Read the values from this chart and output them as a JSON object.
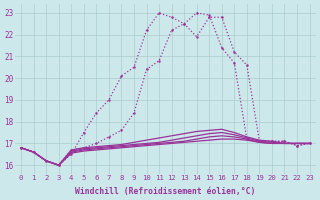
{
  "background_color": "#cce8ea",
  "grid_color": "#aacccc",
  "line_color": "#993399",
  "xlabel": "Windchill (Refroidissement éolien,°C)",
  "ylim": [
    15.6,
    23.4
  ],
  "xlim": [
    -0.5,
    23.5
  ],
  "yticks": [
    16,
    17,
    18,
    19,
    20,
    21,
    22,
    23
  ],
  "xticks": [
    0,
    1,
    2,
    3,
    4,
    5,
    6,
    7,
    8,
    9,
    10,
    11,
    12,
    13,
    14,
    15,
    16,
    17,
    18,
    19,
    20,
    21,
    22,
    23
  ],
  "curve1_x": [
    0,
    1,
    2,
    3,
    4,
    5,
    6,
    7,
    8,
    9,
    10,
    11,
    12,
    13,
    14,
    15,
    16,
    17,
    18,
    19,
    20,
    21,
    22,
    23
  ],
  "curve1_y": [
    16.8,
    16.6,
    16.2,
    16.0,
    16.5,
    17.5,
    18.4,
    19.0,
    20.1,
    20.5,
    22.2,
    23.0,
    22.8,
    22.5,
    21.9,
    22.8,
    22.8,
    21.2,
    20.6,
    17.1,
    17.1,
    17.1,
    16.9,
    17.0
  ],
  "curve2_x": [
    0,
    1,
    2,
    3,
    4,
    5,
    6,
    7,
    8,
    9,
    10,
    11,
    12,
    13,
    14,
    15,
    16,
    17,
    18,
    19,
    20,
    21,
    22,
    23
  ],
  "curve2_y": [
    16.8,
    16.6,
    16.2,
    16.0,
    16.7,
    16.8,
    17.0,
    17.3,
    17.6,
    18.4,
    20.4,
    20.8,
    22.2,
    22.5,
    23.0,
    22.9,
    21.4,
    20.7,
    17.2,
    17.1,
    17.1,
    17.1,
    16.9,
    17.0
  ],
  "flat1": [
    16.8,
    16.6,
    16.2,
    16.0,
    16.55,
    16.65,
    16.7,
    16.75,
    16.8,
    16.85,
    16.9,
    16.95,
    17.0,
    17.05,
    17.1,
    17.15,
    17.2,
    17.2,
    17.15,
    17.05,
    17.0,
    17.0,
    17.0,
    17.0
  ],
  "flat2": [
    16.8,
    16.6,
    16.2,
    16.0,
    16.6,
    16.7,
    16.75,
    16.8,
    16.85,
    16.9,
    16.95,
    17.0,
    17.05,
    17.1,
    17.2,
    17.3,
    17.35,
    17.3,
    17.2,
    17.05,
    17.0,
    17.0,
    17.0,
    17.0
  ],
  "flat3": [
    16.8,
    16.6,
    16.2,
    16.0,
    16.65,
    16.75,
    16.8,
    16.85,
    16.9,
    16.95,
    17.0,
    17.05,
    17.15,
    17.25,
    17.35,
    17.45,
    17.5,
    17.4,
    17.25,
    17.1,
    17.05,
    17.0,
    17.0,
    17.0
  ],
  "flat4": [
    16.8,
    16.6,
    16.2,
    16.0,
    16.7,
    16.8,
    16.85,
    16.9,
    16.95,
    17.05,
    17.15,
    17.25,
    17.35,
    17.45,
    17.55,
    17.6,
    17.65,
    17.5,
    17.3,
    17.15,
    17.1,
    17.0,
    17.0,
    17.0
  ]
}
